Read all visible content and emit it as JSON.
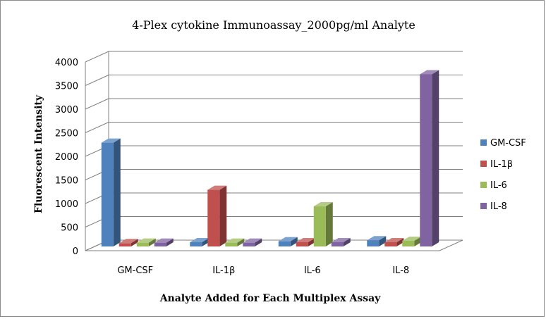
{
  "chart_data": {
    "type": "bar",
    "title": "4-Plex cytokine Immunoassay_2000pg/ml Analyte",
    "xlabel": "Analyte Added for Each Multiplex Assay",
    "ylabel": "Fluorescent Intensity",
    "categories": [
      "GM-CSF",
      "IL-1β",
      "IL-6",
      "IL-8"
    ],
    "ylim": [
      0,
      4000
    ],
    "yticks": [
      0,
      500,
      1000,
      1500,
      2000,
      2500,
      3000,
      3500,
      4000
    ],
    "grid": true,
    "legend_position": "right",
    "series": [
      {
        "name": "GM-CSF",
        "color": "#4f81bd",
        "values": [
          2200,
          90,
          110,
          130
        ]
      },
      {
        "name": "IL-1β",
        "color": "#c0504d",
        "values": [
          70,
          1200,
          90,
          90
        ]
      },
      {
        "name": "IL-6",
        "color": "#9bbb59",
        "values": [
          80,
          80,
          850,
          120
        ]
      },
      {
        "name": "IL-8",
        "color": "#8064a2",
        "values": [
          80,
          80,
          90,
          3650
        ]
      }
    ]
  }
}
